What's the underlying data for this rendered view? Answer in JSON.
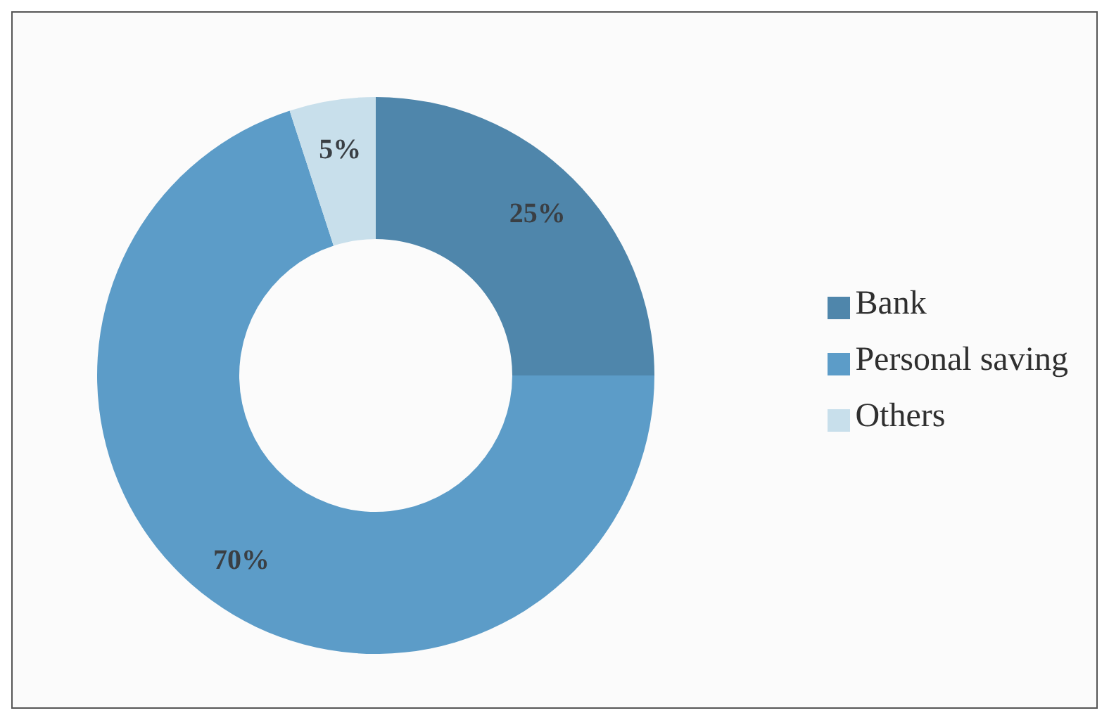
{
  "chart_data": {
    "type": "donut",
    "categories": [
      "Bank",
      "Personal saving",
      "Others"
    ],
    "values": [
      25,
      70,
      5
    ],
    "colors": [
      "#4f86ab",
      "#5c9cc8",
      "#c8dfeb"
    ],
    "value_labels": [
      "25%",
      "70%",
      "5%"
    ],
    "legend": "right"
  }
}
